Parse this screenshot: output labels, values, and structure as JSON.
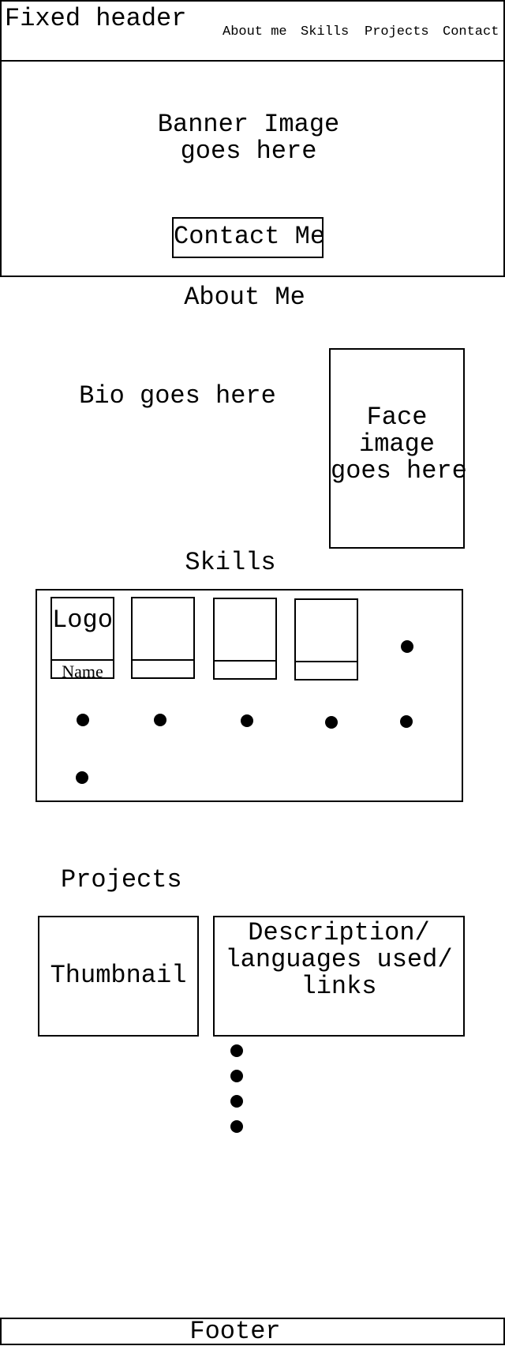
{
  "header": {
    "title": "Fixed header",
    "nav": [
      "About me",
      "Skills",
      "Projects",
      "Contact"
    ]
  },
  "banner": {
    "line1": "Banner Image",
    "line2": "goes here",
    "button": "Contact Me"
  },
  "about": {
    "heading": "About Me",
    "bio": "Bio goes here",
    "face_line1": "Face",
    "face_line2": "image",
    "face_line3": "goes here"
  },
  "skills": {
    "heading": "Skills",
    "logo": "Logo",
    "name": "Name"
  },
  "projects": {
    "heading": "Projects",
    "thumbnail": "Thumbnail",
    "desc_line1": "Description/",
    "desc_line2": "languages used/",
    "desc_line3": "links"
  },
  "footer": {
    "label": "Footer"
  }
}
